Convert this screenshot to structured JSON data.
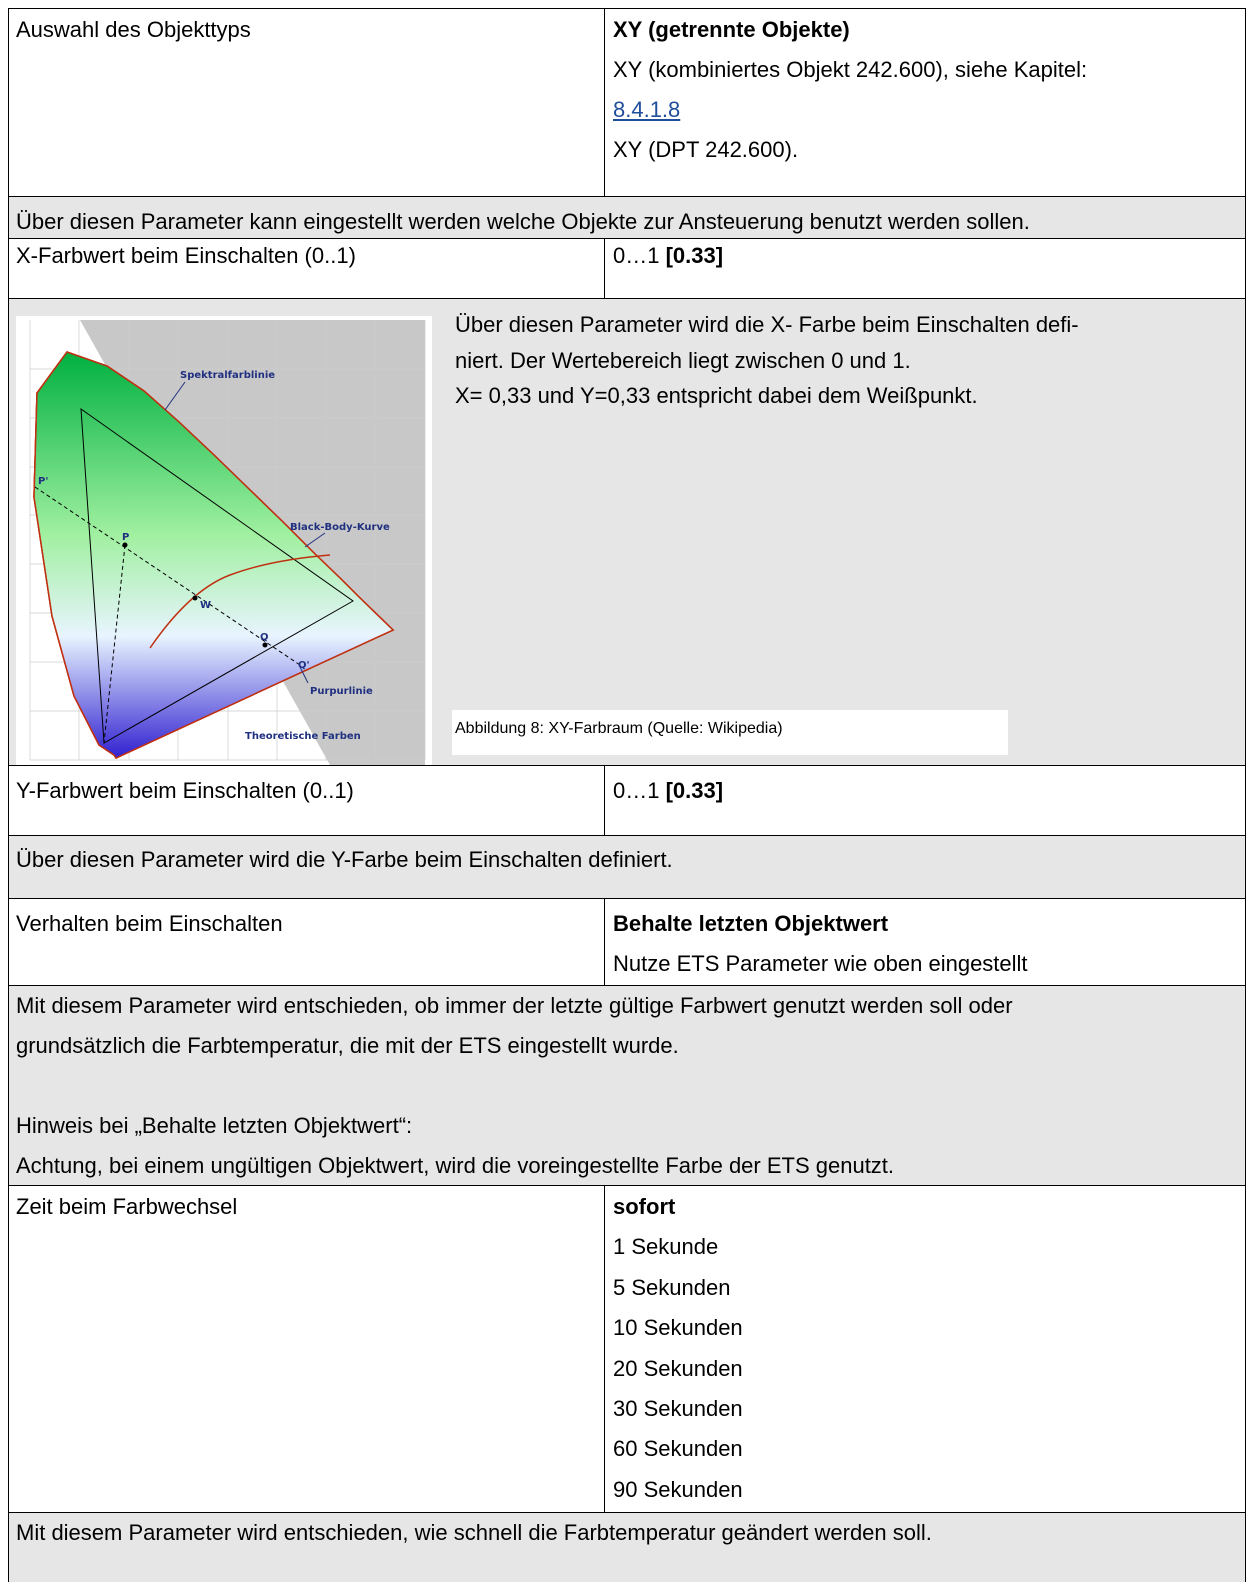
{
  "rows": [
    {
      "parameter": "Auswahl des Objekttyps",
      "options": [
        "XY (getrennte Objekte)",
        "XY (kombiniertes Objekt 242.600), siehe Kapitel:",
        "XY (DPT 242.600)."
      ],
      "link": "8.4.1.8"
    },
    {
      "description": [
        "Über diesen Parameter kann eingestellt werden welche Objekte zur Ansteuerung benutzt werden sollen."
      ]
    },
    {
      "parameter": "X-Farbwert beim Einschalten (0..1)",
      "range": "0…1",
      "default": "[0.33]"
    },
    {
      "description": [
        "Über diesen Parameter wird die X- Farbe beim Einschalten defi-",
        "niert. Der Wertebereich liegt zwischen 0 und 1.",
        "X= 0,33 und Y=0,33 entspricht dabei dem Weißpunkt."
      ],
      "caption": "Abbildung 8: XY-Farbraum (Quelle: Wikipedia)",
      "figure_labels": [
        "Spektralfarblinie",
        "Black-Body-Kurve",
        "Purpurlinie",
        "Theoretische Farben",
        "P",
        "P'",
        "W",
        "Q",
        "Q'"
      ]
    },
    {
      "parameter": "Y-Farbwert beim Einschalten (0..1)",
      "range": "0…1",
      "default": "[0.33]"
    },
    {
      "description": [
        "Über diesen Parameter wird die Y-Farbe beim Einschalten definiert."
      ]
    },
    {
      "parameter": "Verhalten beim Einschalten",
      "options": [
        "Behalte letzten Objektwert",
        "Nutze ETS Parameter wie oben eingestellt"
      ]
    },
    {
      "description": [
        "Mit diesem Parameter wird entschieden, ob immer der letzte gültige Farbwert genutzt werden soll oder",
        "grundsätzlich die Farbtemperatur, die mit der ETS eingestellt wurde.",
        "Hinweis bei „Behalte letzten Objektwert“:",
        "Achtung, bei einem ungültigen Objektwert, wird die voreingestellte Farbe der ETS genutzt."
      ]
    },
    {
      "parameter": "Zeit beim Farbwechsel",
      "options": [
        "sofort",
        "1 Sekunde",
        "5 Sekunden",
        "10 Sekunden",
        "20 Sekunden",
        "30 Sekunden",
        "60 Sekunden",
        "90 Sekunden"
      ]
    },
    {
      "description": [
        "Mit diesem Parameter wird entschieden, wie schnell die Farbtemperatur geändert werden soll."
      ]
    }
  ]
}
